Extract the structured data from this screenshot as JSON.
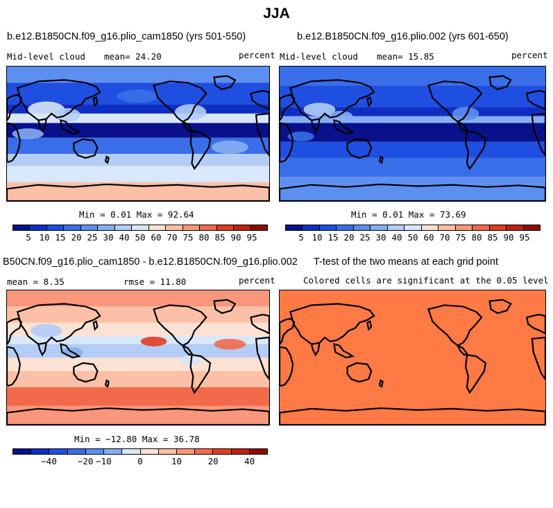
{
  "title": "JJA",
  "panels": [
    {
      "title": "b.e12.B1850CN.f09_g16.plio_cam1850 (yrs 501-550)",
      "variable": "Mid-level cloud",
      "stat": "mean=  24.20",
      "units": "percent",
      "minmax": "Min =   0.01 Max =  92.64",
      "colorbar_labels": [
        "5",
        "10",
        "15",
        "20",
        "25",
        "30",
        "40",
        "50",
        "60",
        "70",
        "75",
        "80",
        "85",
        "90",
        "95"
      ]
    },
    {
      "title": "b.e12.B1850CN.f09_g16.plio.002 (yrs 601-650)",
      "variable": "Mid-level cloud",
      "stat": "mean=  15.85",
      "units": "percent",
      "minmax": "Min =   0.01 Max =  73.69",
      "colorbar_labels": [
        "5",
        "10",
        "15",
        "20",
        "25",
        "30",
        "40",
        "50",
        "60",
        "70",
        "75",
        "80",
        "85",
        "90",
        "95"
      ]
    },
    {
      "title": "B50CN.f09_g16.plio_cam1850 - b.e12.B1850CN.f09_g16.plio.002",
      "stat_left": "mean =   8.35",
      "stat_mid": "rmse =  11.80",
      "units": "percent",
      "minmax": "Min = −12.80 Max =  36.78",
      "colorbar_labels": [
        "−40",
        "−20",
        "−10",
        "0",
        "10",
        "20",
        "40"
      ]
    },
    {
      "title": "T-test of the two means at each grid point",
      "subtitle": "Colored cells are significant at the 0.05 level"
    }
  ],
  "colors": {
    "palette": [
      "#08118a",
      "#0f2fc4",
      "#1f4fe0",
      "#3a6ee8",
      "#5d8ff0",
      "#86aef3",
      "#b3cdf6",
      "#d9e7fb",
      "#fde2d4",
      "#fbc0a6",
      "#f8977a",
      "#f26a4c",
      "#e03d22",
      "#c0210f",
      "#8c0d05"
    ],
    "ttest_fill": "#ff7a45"
  }
}
